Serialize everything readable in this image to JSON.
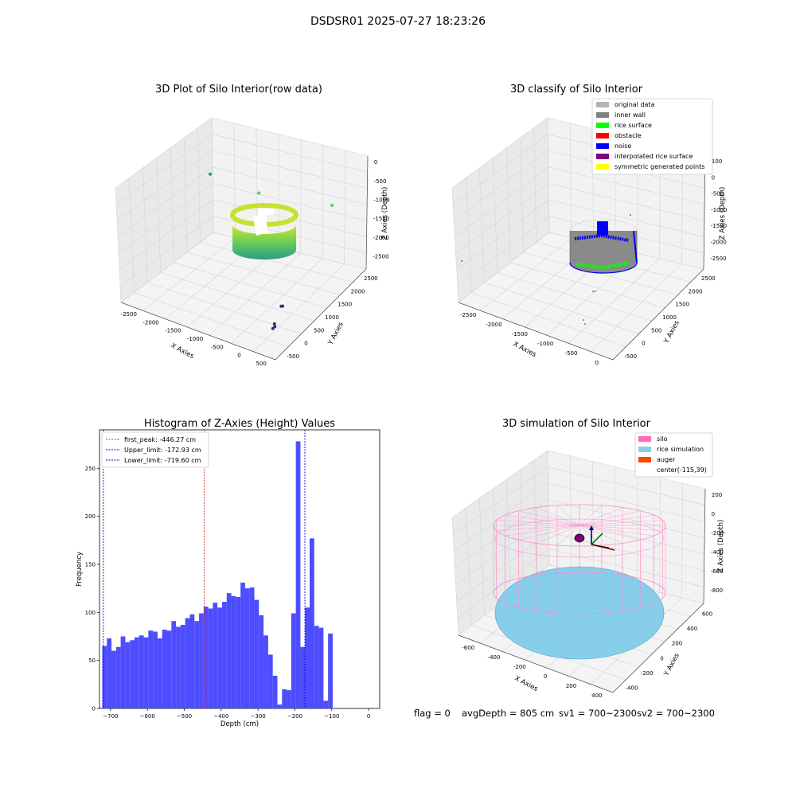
{
  "figure_title": "DSDSR01 2025-07-27 18:23:26",
  "status_line": {
    "flag": "flag = 0",
    "avg_depth": "avgDepth = 805 cm",
    "sv1": "sv1 = 700~2300",
    "sv2": "sv2 = 700~2300"
  },
  "colors": {
    "original_data": "#b4b4b4",
    "inner_wall": "#808080",
    "rice_surface": "#00ff00",
    "obstacle": "#ff0000",
    "noise": "#0000ff",
    "interpolated_rice_surface": "#800080",
    "symmetric_generated_points": "#ffff00",
    "silo": "#ff69b4",
    "rice_simulation": "#87ceeb",
    "auger": "#ff4500",
    "histogram_bar": "#4d4dff",
    "first_peak_line": "#d62728",
    "limit_line": "#0000cc"
  },
  "chart_data": [
    {
      "type": "scatter3d",
      "title": "3D Plot of Silo Interior(row data)",
      "xlabel": "X Axies",
      "ylabel": "Y Axies",
      "zlabel": "Z Axies (Depth)",
      "x_ticks": [
        "-2500",
        "-2000",
        "-1500",
        "-1000",
        "-500",
        "0",
        "500"
      ],
      "y_ticks": [
        "-500",
        "0",
        "500",
        "1000",
        "1500",
        "2000",
        "2500"
      ],
      "z_ticks": [
        "0",
        "-500",
        "-1000",
        "-1500",
        "-2000",
        "-2500"
      ],
      "xlim": [
        -2800,
        600
      ],
      "ylim": [
        -600,
        2800
      ],
      "zlim": [
        -2800,
        100
      ],
      "colormap": "viridis",
      "grid": true,
      "outliers": [
        {
          "x": -2750,
          "y": 2600,
          "z": -1200
        },
        {
          "x": -1200,
          "y": 1800,
          "z": -600
        },
        {
          "x": -50,
          "y": 700,
          "z": -2400
        },
        {
          "x": -30,
          "y": 720,
          "z": -2400
        },
        {
          "x": 40,
          "y": 300,
          "z": -2600
        },
        {
          "x": 60,
          "y": 280,
          "z": -2650
        },
        {
          "x": 30,
          "y": 260,
          "z": -2700
        },
        {
          "x": 350,
          "y": 1900,
          "z": -300
        }
      ]
    },
    {
      "type": "scatter3d",
      "title": "3D classify of Silo Interior",
      "xlabel": "X Axies",
      "ylabel": "Y Axies",
      "zlabel": "Z Axies (Depth)",
      "x_ticks": [
        "-2500",
        "-2000",
        "-1500",
        "-1000",
        "-500",
        "0"
      ],
      "y_ticks": [
        "-500",
        "0",
        "500",
        "1000",
        "1500",
        "2000",
        "2500"
      ],
      "z_ticks": [
        "100",
        "0",
        "-500",
        "-1000",
        "-1500",
        "-2000",
        "-2500"
      ],
      "legend": [
        "original data",
        "inner wall",
        "rice surface",
        "obstacle",
        "noise",
        "interpolated rice surface",
        "symmetric generated points"
      ],
      "legend_placement": "top-right",
      "grid": true
    },
    {
      "type": "bar",
      "title": "Histogram of Z-Axies (Height) Values",
      "xlabel": "Depth (cm)",
      "ylabel": "Frequency",
      "xlim": [
        -730,
        30
      ],
      "ylim": [
        0,
        290
      ],
      "x_ticks": [
        -700,
        -600,
        -500,
        -400,
        -300,
        -200,
        -100,
        0
      ],
      "y_ticks": [
        0,
        50,
        100,
        150,
        200,
        250
      ],
      "bin_width": 12.5,
      "bin_start": -722.5,
      "values": [
        65,
        73,
        60,
        64,
        75,
        69,
        71,
        74,
        76,
        74,
        81,
        80,
        73,
        82,
        81,
        91,
        85,
        87,
        94,
        98,
        91,
        99,
        106,
        104,
        110,
        105,
        111,
        120,
        117,
        116,
        131,
        125,
        126,
        113,
        97,
        76,
        56,
        34,
        4,
        20,
        19,
        99,
        278,
        64,
        105,
        177,
        86,
        84,
        8,
        78
      ],
      "legend": [
        "first_peak: -446.27 cm",
        "Upper_limit: -172.93 cm",
        "Lower_limit: -719.60 cm"
      ],
      "legend_placement": "top-left",
      "vlines": [
        {
          "x": -446.27,
          "style": "dashed"
        },
        {
          "x": -172.93,
          "style": "dashed"
        },
        {
          "x": -719.6,
          "style": "dashed"
        }
      ]
    },
    {
      "type": "surface3d",
      "title": "3D simulation of Silo Interior",
      "xlabel": "X Axies",
      "ylabel": "Y Axies",
      "zlabel": "Z Axies (Depth)",
      "x_ticks": [
        "-600",
        "-400",
        "-200",
        "0",
        "200",
        "400"
      ],
      "y_ticks": [
        "-400",
        "-200",
        "0",
        "200",
        "400",
        "600"
      ],
      "z_ticks": [
        "200",
        "0",
        "-200",
        "-400",
        "-600",
        "-800"
      ],
      "legend": [
        "silo",
        "rice simulation",
        "auger",
        "center(-115,39)"
      ],
      "legend_placement": "top-right",
      "grid": true
    }
  ]
}
